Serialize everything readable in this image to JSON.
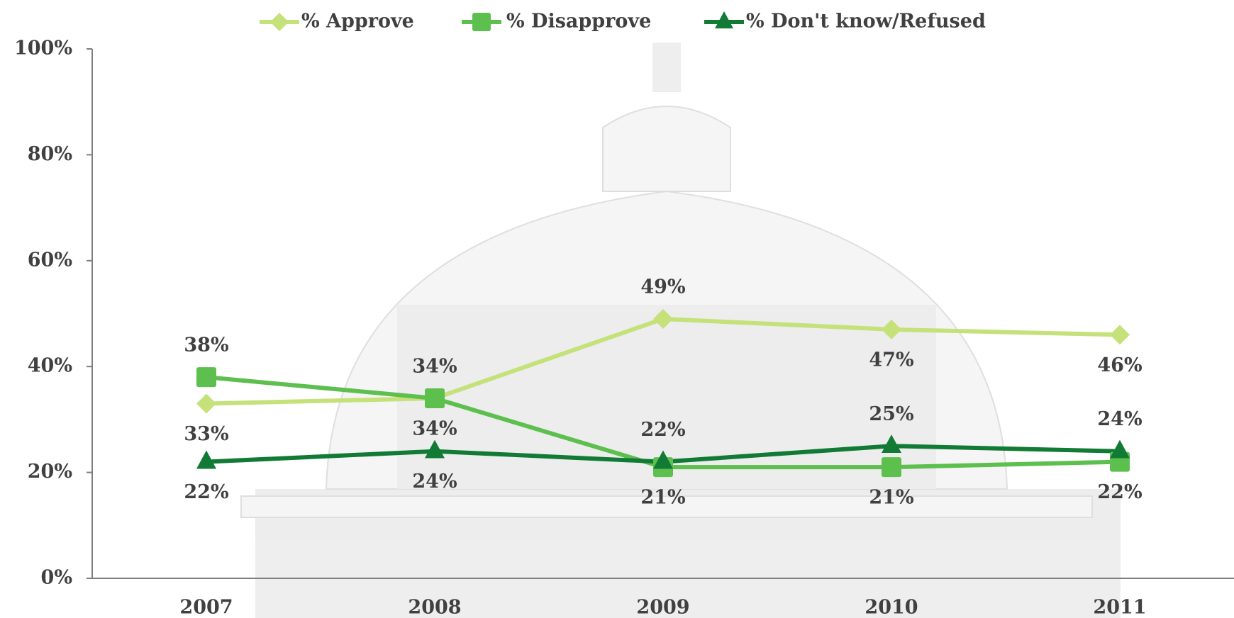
{
  "chart_data": {
    "type": "line",
    "categories": [
      "2007",
      "2008",
      "2009",
      "2010",
      "2011"
    ],
    "series": [
      {
        "name": "% Approve",
        "color": "#c5e17a",
        "marker": "diamond",
        "values": [
          33,
          34,
          49,
          47,
          46
        ],
        "value_labels": [
          "33%",
          "34%",
          "49%",
          "47%",
          "46%"
        ]
      },
      {
        "name": "% Disapprove",
        "color": "#5cbf4e",
        "marker": "square",
        "values": [
          38,
          34,
          21,
          21,
          22
        ],
        "value_labels": [
          "38%",
          "34%",
          "21%",
          "21%",
          "22%"
        ]
      },
      {
        "name": "% Don't know/Refused",
        "color": "#117a35",
        "marker": "triangle",
        "values": [
          22,
          24,
          22,
          25,
          24
        ],
        "value_labels": [
          "22%",
          "24%",
          "22%",
          "25%",
          "24%"
        ]
      }
    ],
    "ylim": [
      0,
      100
    ],
    "yticks": [
      {
        "value": 0,
        "label": "0%"
      },
      {
        "value": 20,
        "label": "20%"
      },
      {
        "value": 40,
        "label": "40%"
      },
      {
        "value": 60,
        "label": "60%"
      },
      {
        "value": 80,
        "label": "80%"
      },
      {
        "value": 100,
        "label": "100%"
      }
    ],
    "grid": false,
    "legend": "top"
  }
}
